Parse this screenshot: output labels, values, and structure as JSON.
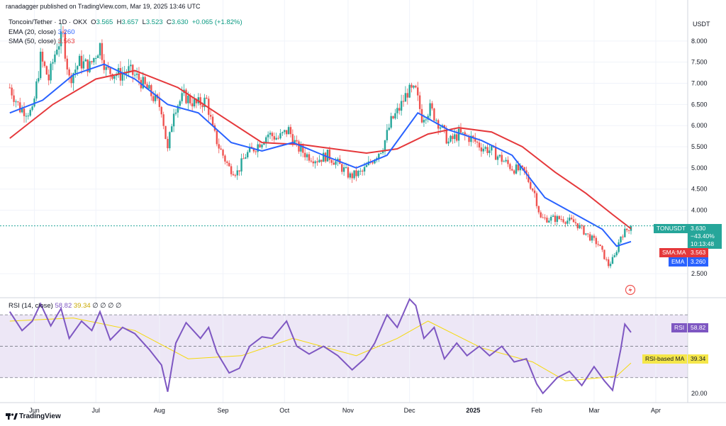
{
  "header": {
    "publisher": "ranadagger published on TradingView.com, Mar 19, 2025 13:46 UTC"
  },
  "legend": {
    "symbol_line": "Toncoin/Tether · 1D · OKX",
    "ohlc": {
      "o_label": "O",
      "o": "3.565",
      "h_label": "H",
      "h": "3.657",
      "l_label": "L",
      "l": "3.523",
      "c_label": "C",
      "c": "3.630",
      "chg": "+0.065 (+1.82%)"
    },
    "ema": {
      "label": "EMA (20, close)",
      "value": "3.260"
    },
    "sma": {
      "label": "SMA (50, close)",
      "value": "3.563"
    },
    "rsi": {
      "label": "RSI (14, close)",
      "v1": "58.82",
      "v2": "39.34",
      "rest": "∅ ∅ ∅ ∅"
    }
  },
  "currency_label": "USDT",
  "price_tags": {
    "symbol": "TONUSDT",
    "price": "3.630",
    "change": "−43.40%",
    "countdown": "10:13:48",
    "sma_name": "SMA:MA",
    "sma_value": "3.563",
    "ema_name": "EMA",
    "ema_value": "3.260"
  },
  "rsi_tags": {
    "rsi_name": "RSI",
    "rsi_value": "58.82",
    "ma_name": "RSI-based MA",
    "ma_value": "39.34"
  },
  "branding": {
    "logo_text": "TradingView"
  },
  "colors": {
    "up": "#26a69a",
    "down": "#ef5350",
    "ema": "#2962ff",
    "sma": "#e5383b",
    "rsi": "#7e57c2",
    "rsi_ma": "#f5d90a",
    "rsi_band": "#ede7f6",
    "price_line": "#26a69a"
  },
  "chart_data": [
    {
      "type": "candlestick",
      "title": "Toncoin/Tether · 1D · OKX",
      "ylim": [
        2.1,
        8.6
      ],
      "yticks": [
        "8.000",
        "7.500",
        "7.000",
        "6.500",
        "6.000",
        "5.500",
        "5.000",
        "4.500",
        "4.000",
        "2.500"
      ],
      "xticks": [
        "Jun",
        "Jul",
        "Aug",
        "Sep",
        "Oct",
        "Nov",
        "Dec",
        "2025",
        "Feb",
        "Mar",
        "Apr"
      ],
      "close_path": [
        [
          "2024-05-20",
          6.9
        ],
        [
          "2024-05-25",
          6.4
        ],
        [
          "2024-05-31",
          6.3
        ],
        [
          "2024-06-04",
          7.6
        ],
        [
          "2024-06-08",
          7.1
        ],
        [
          "2024-06-12",
          7.9
        ],
        [
          "2024-06-15",
          8.1
        ],
        [
          "2024-06-18",
          7.1
        ],
        [
          "2024-06-23",
          7.5
        ],
        [
          "2024-06-28",
          7.4
        ],
        [
          "2024-07-03",
          7.9
        ],
        [
          "2024-07-06",
          7.3
        ],
        [
          "2024-07-13",
          7.2
        ],
        [
          "2024-07-17",
          7.3
        ],
        [
          "2024-07-22",
          7.1
        ],
        [
          "2024-07-27",
          6.8
        ],
        [
          "2024-08-02",
          6.4
        ],
        [
          "2024-08-05",
          5.4
        ],
        [
          "2024-08-08",
          6.4
        ],
        [
          "2024-08-13",
          6.7
        ],
        [
          "2024-08-19",
          6.5
        ],
        [
          "2024-08-24",
          6.6
        ],
        [
          "2024-08-27",
          5.9
        ],
        [
          "2024-08-30",
          5.5
        ],
        [
          "2024-09-04",
          5.0
        ],
        [
          "2024-09-08",
          4.9
        ],
        [
          "2024-09-12",
          5.3
        ],
        [
          "2024-09-17",
          5.5
        ],
        [
          "2024-09-23",
          5.8
        ],
        [
          "2024-09-28",
          5.7
        ],
        [
          "2024-10-03",
          5.9
        ],
        [
          "2024-10-07",
          5.5
        ],
        [
          "2024-10-12",
          5.3
        ],
        [
          "2024-10-17",
          5.2
        ],
        [
          "2024-10-22",
          5.3
        ],
        [
          "2024-10-27",
          5.1
        ],
        [
          "2024-11-02",
          4.8
        ],
        [
          "2024-11-08",
          4.9
        ],
        [
          "2024-11-13",
          5.2
        ],
        [
          "2024-11-18",
          5.5
        ],
        [
          "2024-11-22",
          6.1
        ],
        [
          "2024-11-26",
          6.4
        ],
        [
          "2024-11-30",
          6.8
        ],
        [
          "2024-12-04",
          6.8
        ],
        [
          "2024-12-07",
          6.2
        ],
        [
          "2024-12-11",
          6.4
        ],
        [
          "2024-12-16",
          6.0
        ],
        [
          "2024-12-20",
          5.6
        ],
        [
          "2024-12-25",
          5.8
        ],
        [
          "2024-12-31",
          5.7
        ],
        [
          "2025-01-05",
          5.5
        ],
        [
          "2025-01-10",
          5.4
        ],
        [
          "2025-01-15",
          5.2
        ],
        [
          "2025-01-20",
          5.0
        ],
        [
          "2025-01-26",
          4.9
        ],
        [
          "2025-01-31",
          4.4
        ],
        [
          "2025-02-03",
          3.8
        ],
        [
          "2025-02-08",
          3.8
        ],
        [
          "2025-02-13",
          3.8
        ],
        [
          "2025-02-20",
          3.7
        ],
        [
          "2025-02-26",
          3.4
        ],
        [
          "2025-03-03",
          3.2
        ],
        [
          "2025-03-08",
          2.7
        ],
        [
          "2025-03-11",
          2.9
        ],
        [
          "2025-03-14",
          3.4
        ],
        [
          "2025-03-19",
          3.63
        ]
      ],
      "series": [
        {
          "name": "EMA (20, close)",
          "points": [
            [
              "2024-05-20",
              6.3
            ],
            [
              "2024-06-05",
              6.6
            ],
            [
              "2024-06-20",
              7.2
            ],
            [
              "2024-07-05",
              7.45
            ],
            [
              "2024-07-20",
              7.1
            ],
            [
              "2024-08-05",
              6.5
            ],
            [
              "2024-08-20",
              6.3
            ],
            [
              "2024-09-05",
              5.6
            ],
            [
              "2024-09-20",
              5.4
            ],
            [
              "2024-10-05",
              5.6
            ],
            [
              "2024-10-20",
              5.3
            ],
            [
              "2024-11-05",
              5.0
            ],
            [
              "2024-11-20",
              5.3
            ],
            [
              "2024-12-05",
              6.3
            ],
            [
              "2024-12-20",
              5.9
            ],
            [
              "2025-01-05",
              5.65
            ],
            [
              "2025-01-20",
              5.3
            ],
            [
              "2025-02-05",
              4.3
            ],
            [
              "2025-02-20",
              3.9
            ],
            [
              "2025-03-05",
              3.55
            ],
            [
              "2025-03-12",
              3.15
            ],
            [
              "2025-03-19",
              3.26
            ]
          ]
        },
        {
          "name": "SMA (50, close)",
          "points": [
            [
              "2024-05-20",
              5.7
            ],
            [
              "2024-06-10",
              6.5
            ],
            [
              "2024-07-01",
              7.1
            ],
            [
              "2024-07-20",
              7.3
            ],
            [
              "2024-08-10",
              6.9
            ],
            [
              "2024-09-01",
              6.2
            ],
            [
              "2024-09-20",
              5.6
            ],
            [
              "2024-10-10",
              5.55
            ],
            [
              "2024-10-25",
              5.45
            ],
            [
              "2024-11-10",
              5.35
            ],
            [
              "2024-11-25",
              5.45
            ],
            [
              "2024-12-10",
              5.8
            ],
            [
              "2024-12-25",
              5.95
            ],
            [
              "2025-01-10",
              5.85
            ],
            [
              "2025-01-25",
              5.5
            ],
            [
              "2025-02-10",
              4.9
            ],
            [
              "2025-02-25",
              4.4
            ],
            [
              "2025-03-10",
              3.9
            ],
            [
              "2025-03-19",
              3.563
            ]
          ]
        }
      ],
      "last_price": 3.63
    },
    {
      "type": "line",
      "title": "RSI (14, close)",
      "ylim": [
        15,
        80
      ],
      "yticks": [
        "20.00"
      ],
      "bands": [
        30,
        70
      ],
      "series": [
        {
          "name": "RSI",
          "points": [
            [
              "2024-05-20",
              72
            ],
            [
              "2024-05-26",
              60
            ],
            [
              "2024-05-31",
              66
            ],
            [
              "2024-06-04",
              77
            ],
            [
              "2024-06-09",
              63
            ],
            [
              "2024-06-14",
              74
            ],
            [
              "2024-06-18",
              55
            ],
            [
              "2024-06-24",
              66
            ],
            [
              "2024-06-29",
              60
            ],
            [
              "2024-07-03",
              72
            ],
            [
              "2024-07-08",
              54
            ],
            [
              "2024-07-14",
              62
            ],
            [
              "2024-07-20",
              58
            ],
            [
              "2024-07-27",
              48
            ],
            [
              "2024-08-02",
              38
            ],
            [
              "2024-08-05",
              21
            ],
            [
              "2024-08-09",
              52
            ],
            [
              "2024-08-14",
              65
            ],
            [
              "2024-08-21",
              55
            ],
            [
              "2024-08-25",
              62
            ],
            [
              "2024-08-29",
              46
            ],
            [
              "2024-09-04",
              33
            ],
            [
              "2024-09-09",
              36
            ],
            [
              "2024-09-14",
              50
            ],
            [
              "2024-09-20",
              56
            ],
            [
              "2024-09-25",
              55
            ],
            [
              "2024-10-02",
              66
            ],
            [
              "2024-10-07",
              50
            ],
            [
              "2024-10-13",
              45
            ],
            [
              "2024-10-20",
              50
            ],
            [
              "2024-10-27",
              44
            ],
            [
              "2024-11-03",
              35
            ],
            [
              "2024-11-09",
              42
            ],
            [
              "2024-11-14",
              52
            ],
            [
              "2024-11-20",
              70
            ],
            [
              "2024-11-25",
              62
            ],
            [
              "2024-12-01",
              80
            ],
            [
              "2024-12-04",
              76
            ],
            [
              "2024-12-08",
              55
            ],
            [
              "2024-12-13",
              62
            ],
            [
              "2024-12-18",
              42
            ],
            [
              "2024-12-24",
              52
            ],
            [
              "2024-12-29",
              44
            ],
            [
              "2025-01-04",
              50
            ],
            [
              "2025-01-09",
              44
            ],
            [
              "2025-01-15",
              50
            ],
            [
              "2025-01-21",
              40
            ],
            [
              "2025-01-27",
              42
            ],
            [
              "2025-02-01",
              26
            ],
            [
              "2025-02-04",
              20
            ],
            [
              "2025-02-11",
              30
            ],
            [
              "2025-02-17",
              34
            ],
            [
              "2025-02-23",
              25
            ],
            [
              "2025-03-01",
              37
            ],
            [
              "2025-03-06",
              28
            ],
            [
              "2025-03-10",
              22
            ],
            [
              "2025-03-14",
              48
            ],
            [
              "2025-03-16",
              64
            ],
            [
              "2025-03-19",
              58.82
            ]
          ]
        },
        {
          "name": "RSI-based MA",
          "points": [
            [
              "2024-05-20",
              66
            ],
            [
              "2024-06-20",
              68
            ],
            [
              "2024-07-20",
              60
            ],
            [
              "2024-08-15",
              42
            ],
            [
              "2024-09-10",
              44
            ],
            [
              "2024-10-05",
              55
            ],
            [
              "2024-11-05",
              44
            ],
            [
              "2024-11-25",
              55
            ],
            [
              "2024-12-10",
              66
            ],
            [
              "2025-01-05",
              49
            ],
            [
              "2025-01-30",
              40
            ],
            [
              "2025-02-15",
              28
            ],
            [
              "2025-03-05",
              30
            ],
            [
              "2025-03-12",
              31
            ],
            [
              "2025-03-19",
              39.34
            ]
          ]
        }
      ]
    }
  ]
}
